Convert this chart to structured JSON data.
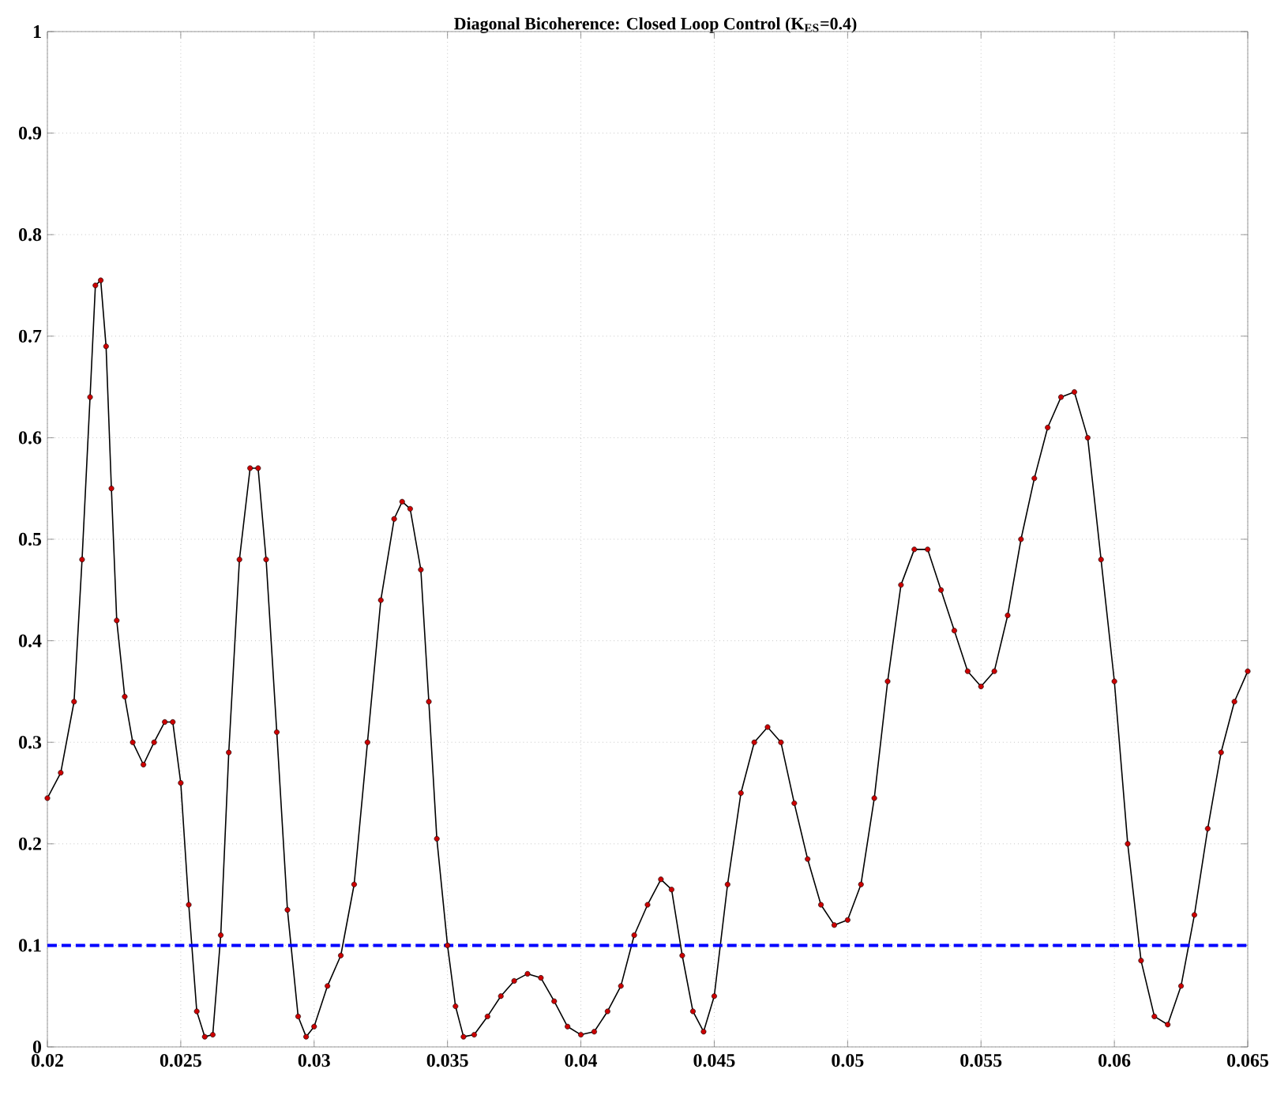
{
  "chart_data": {
    "type": "line",
    "title": "Diagonal Bicoherence: Closed Loop Control (K$_{ES}$=0.4)",
    "xlim": [
      0.02,
      0.065
    ],
    "ylim": [
      0,
      1
    ],
    "xticks": [
      0.02,
      0.025,
      0.03,
      0.035,
      0.04,
      0.045,
      0.05,
      0.055,
      0.06,
      0.065
    ],
    "yticks": [
      0,
      0.1,
      0.2,
      0.3,
      0.4,
      0.5,
      0.6,
      0.7,
      0.8,
      0.9,
      1
    ],
    "grid": true,
    "marker": "circle",
    "line_style": "solid",
    "ref_lines": [
      {
        "axis": "y",
        "value": 0.1,
        "color": "#0000ff",
        "line_style": "dashed"
      }
    ],
    "series": [
      {
        "color": "#cc0000",
        "x": [
          0.02,
          0.0205,
          0.021,
          0.0213,
          0.0216,
          0.0218,
          0.022,
          0.0222,
          0.0224,
          0.0226,
          0.0229,
          0.0232,
          0.0236,
          0.024,
          0.0244,
          0.0247,
          0.025,
          0.0253,
          0.0256,
          0.0259,
          0.0262,
          0.0265,
          0.0268,
          0.0272,
          0.0276,
          0.0279,
          0.0282,
          0.0286,
          0.029,
          0.0294,
          0.0297,
          0.03,
          0.0305,
          0.031,
          0.0315,
          0.032,
          0.0325,
          0.033,
          0.0333,
          0.0336,
          0.034,
          0.0343,
          0.0346,
          0.035,
          0.0353,
          0.0356,
          0.036,
          0.0365,
          0.037,
          0.0375,
          0.038,
          0.0385,
          0.039,
          0.0395,
          0.04,
          0.0405,
          0.041,
          0.0415,
          0.042,
          0.0425,
          0.043,
          0.0434,
          0.0438,
          0.0442,
          0.0446,
          0.045,
          0.0455,
          0.046,
          0.0465,
          0.047,
          0.0475,
          0.048,
          0.0485,
          0.049,
          0.0495,
          0.05,
          0.0505,
          0.051,
          0.0515,
          0.052,
          0.0525,
          0.053,
          0.0535,
          0.054,
          0.0545,
          0.055,
          0.0555,
          0.056,
          0.0565,
          0.057,
          0.0575,
          0.058,
          0.0585,
          0.059,
          0.0595,
          0.06,
          0.0605,
          0.061,
          0.0615,
          0.062,
          0.0625,
          0.063,
          0.0635,
          0.064,
          0.0645,
          0.065
        ],
        "values": [
          0.245,
          0.27,
          0.34,
          0.48,
          0.64,
          0.75,
          0.755,
          0.69,
          0.55,
          0.42,
          0.345,
          0.3,
          0.278,
          0.3,
          0.32,
          0.32,
          0.26,
          0.14,
          0.035,
          0.01,
          0.012,
          0.11,
          0.29,
          0.48,
          0.57,
          0.57,
          0.48,
          0.31,
          0.135,
          0.03,
          0.01,
          0.02,
          0.06,
          0.09,
          0.16,
          0.3,
          0.44,
          0.52,
          0.537,
          0.53,
          0.47,
          0.34,
          0.205,
          0.1,
          0.04,
          0.01,
          0.012,
          0.03,
          0.05,
          0.065,
          0.072,
          0.068,
          0.045,
          0.02,
          0.012,
          0.015,
          0.035,
          0.06,
          0.11,
          0.14,
          0.165,
          0.155,
          0.09,
          0.035,
          0.015,
          0.05,
          0.16,
          0.25,
          0.3,
          0.315,
          0.3,
          0.24,
          0.185,
          0.14,
          0.12,
          0.125,
          0.16,
          0.245,
          0.36,
          0.455,
          0.49,
          0.49,
          0.45,
          0.41,
          0.37,
          0.355,
          0.37,
          0.425,
          0.5,
          0.56,
          0.61,
          0.64,
          0.645,
          0.6,
          0.48,
          0.36,
          0.2,
          0.085,
          0.03,
          0.022,
          0.06,
          0.13,
          0.215,
          0.29,
          0.34,
          0.37
        ]
      }
    ]
  }
}
